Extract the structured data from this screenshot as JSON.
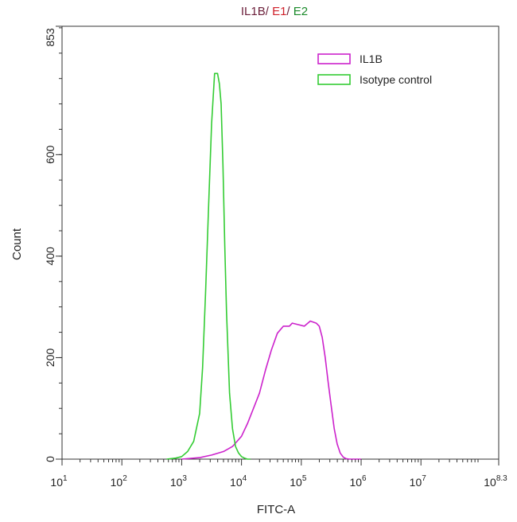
{
  "title_parts": [
    {
      "text": "IL1B",
      "color": "#6b1f3a"
    },
    {
      "text": "/ ",
      "color": "#6b1f3a"
    },
    {
      "text": "E1",
      "color": "#d0202a"
    },
    {
      "text": "/ ",
      "color": "#6b1f3a"
    },
    {
      "text": "E2",
      "color": "#1a8a2a"
    }
  ],
  "chart_data": {
    "type": "line",
    "title": "IL1B/ E1/ E2",
    "xlabel": "FITC-A",
    "ylabel": "Count",
    "xscale": "log10",
    "xlim": [
      1,
      8.3
    ],
    "ylim": [
      0,
      853
    ],
    "xticks": [
      {
        "exp": 1,
        "base": "10",
        "sup": "1"
      },
      {
        "exp": 2,
        "base": "10",
        "sup": "2"
      },
      {
        "exp": 3,
        "base": "10",
        "sup": "3"
      },
      {
        "exp": 4,
        "base": "10",
        "sup": "4"
      },
      {
        "exp": 5,
        "base": "10",
        "sup": "5"
      },
      {
        "exp": 6,
        "base": "10",
        "sup": "6"
      },
      {
        "exp": 7,
        "base": "10",
        "sup": "7"
      },
      {
        "exp": 8.3,
        "base": "10",
        "sup": "8.3"
      }
    ],
    "yticks": [
      0,
      200,
      400,
      600,
      853
    ],
    "legend_position": "top-right",
    "series": [
      {
        "name": "IL1B",
        "color": "#cc22cc",
        "x": [
          3.0,
          3.3,
          3.5,
          3.7,
          3.85,
          4.0,
          4.1,
          4.2,
          4.3,
          4.4,
          4.5,
          4.6,
          4.7,
          4.8,
          4.85,
          4.95,
          5.05,
          5.15,
          5.25,
          5.3,
          5.35,
          5.4,
          5.45,
          5.5,
          5.55,
          5.6,
          5.65,
          5.7,
          5.75,
          5.8,
          5.85,
          6.0
        ],
        "y": [
          0,
          3,
          8,
          15,
          25,
          45,
          70,
          100,
          130,
          175,
          215,
          248,
          262,
          262,
          268,
          265,
          262,
          272,
          268,
          262,
          240,
          200,
          150,
          105,
          60,
          30,
          12,
          4,
          1,
          0,
          0,
          0
        ]
      },
      {
        "name": "Isotype control",
        "color": "#33cc33",
        "x": [
          2.75,
          2.9,
          3.0,
          3.1,
          3.2,
          3.3,
          3.35,
          3.4,
          3.45,
          3.5,
          3.55,
          3.6,
          3.63,
          3.66,
          3.69,
          3.72,
          3.75,
          3.8,
          3.85,
          3.9,
          3.95,
          4.0,
          4.05,
          4.1,
          4.15
        ],
        "y": [
          0,
          2,
          5,
          15,
          35,
          90,
          180,
          330,
          500,
          660,
          760,
          760,
          740,
          700,
          580,
          420,
          290,
          130,
          60,
          25,
          12,
          5,
          2,
          0,
          0
        ]
      }
    ]
  }
}
